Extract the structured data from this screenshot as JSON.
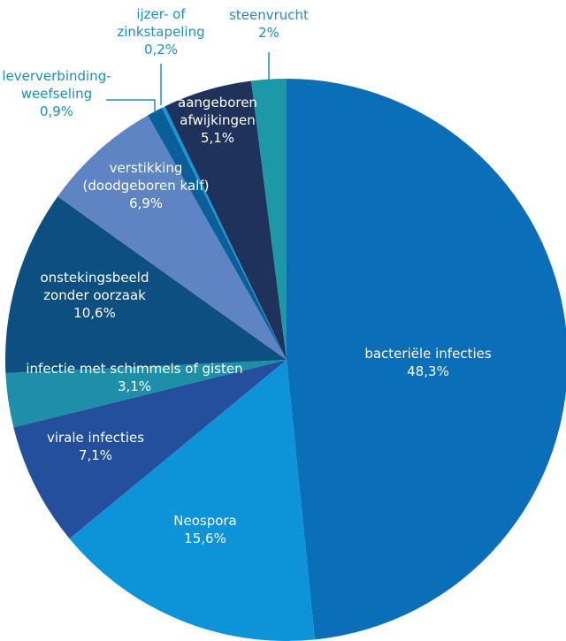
{
  "chart_data": {
    "type": "pie",
    "slices": [
      {
        "label": "bacteriële infecties",
        "value": 48.3,
        "value_label": "48,3%",
        "color": "#0a6fb8"
      },
      {
        "label": "Neospora",
        "value": 15.6,
        "value_label": "15,6%",
        "color": "#0d93d8"
      },
      {
        "label": "virale infecties",
        "value": 7.1,
        "value_label": "7,1%",
        "color": "#234f9c"
      },
      {
        "label": "infectie met schimmels of gisten",
        "value": 3.1,
        "value_label": "3,1%",
        "color": "#1e8fa8"
      },
      {
        "label": "onstekingsbeeld zonder oorzaak",
        "value": 10.6,
        "value_label": "10,6%",
        "color": "#0c4f80"
      },
      {
        "label": "verstikking (doodgeboren kalf)",
        "value": 6.9,
        "value_label": "6,9%",
        "color": "#5e84c4"
      },
      {
        "label": "leververbinding-weefseling",
        "value": 0.9,
        "value_label": "0,9%",
        "color": "#0a5e9a"
      },
      {
        "label": "ijzer- of zinkstapeling",
        "value": 0.2,
        "value_label": "0,2%",
        "color": "#1398d6"
      },
      {
        "label": "aangeboren afwijkingen",
        "value": 5.1,
        "value_label": "5,1%",
        "color": "#1f325c"
      },
      {
        "label": "steenvrucht",
        "value": 2,
        "value_label": "2%",
        "color": "#1d98a6"
      }
    ],
    "label_lines": {
      "bacteriële infecties": [
        "bacteriële infecties"
      ],
      "Neospora": [
        "Neospora"
      ],
      "virale infecties": [
        "virale infecties"
      ],
      "infectie met schimmels of gisten": [
        "infectie met schimmels of gisten"
      ],
      "onstekingsbeeld zonder oorzaak": [
        "onstekingsbeeld",
        "zonder oorzaak"
      ],
      "verstikking (doodgeboren kalf)": [
        "verstikking",
        "(doodgeboren kalf)"
      ],
      "leververbinding-weefseling": [
        "leververbinding-",
        "weefseling"
      ],
      "ijzer- of zinkstapeling": [
        "ijzer- of",
        "zinkstapeling"
      ],
      "aangeboren afwijkingen": [
        "aangeboren",
        "afwijkingen"
      ],
      "steenvrucht": [
        "steenvrucht"
      ]
    },
    "text_color_outside": "#1e8fb5",
    "background": "#ffffff"
  }
}
